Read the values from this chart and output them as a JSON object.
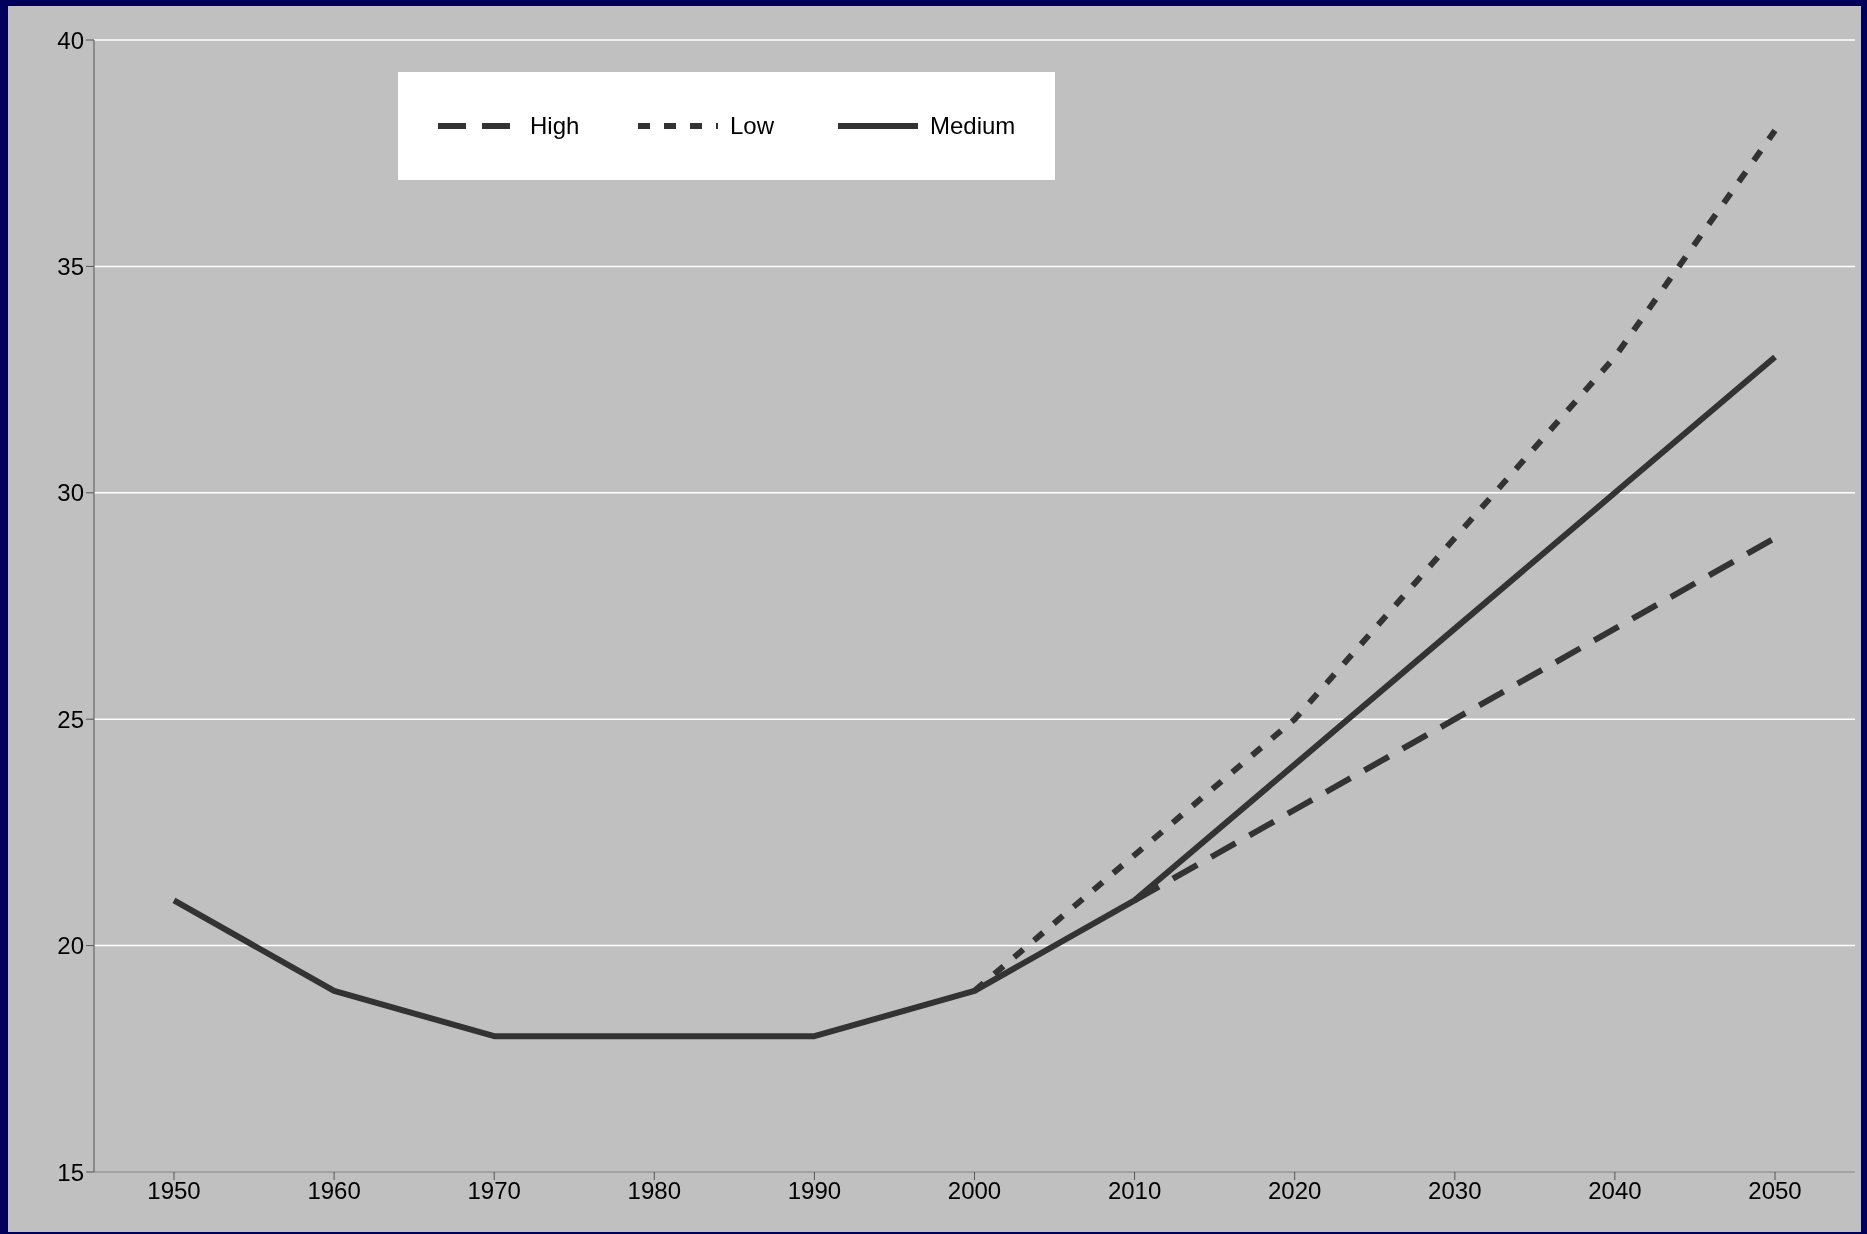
{
  "chart_data": {
    "type": "line",
    "categories": [
      "1950",
      "1960",
      "1970",
      "1980",
      "1990",
      "2000",
      "2010",
      "2020",
      "2030",
      "2040",
      "2050"
    ],
    "series": [
      {
        "name": "High",
        "color": "#333333",
        "line_style": "dashed",
        "values": [
          null,
          null,
          null,
          null,
          null,
          null,
          21,
          23,
          25,
          27,
          29
        ]
      },
      {
        "name": "Low",
        "color": "#333333",
        "line_style": "dotted",
        "values": [
          null,
          null,
          null,
          null,
          null,
          19,
          22,
          25,
          29,
          33,
          38
        ]
      },
      {
        "name": "Medium",
        "color": "#333333",
        "line_style": "solid",
        "values": [
          21,
          19,
          18,
          18,
          18,
          19,
          21,
          24,
          27,
          30,
          33
        ]
      }
    ],
    "ylim": [
      15,
      40
    ],
    "yticks": [
      15,
      20,
      25,
      30,
      35,
      40
    ],
    "grid": "y",
    "legend": "top left",
    "marker": "none"
  }
}
